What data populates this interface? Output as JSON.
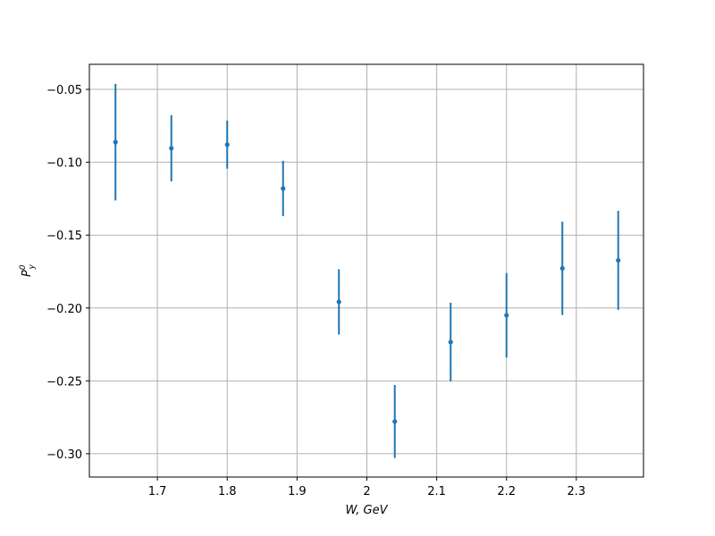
{
  "chart_data": {
    "type": "errorbar",
    "xlabel": "W, GeV",
    "ylabel": "P",
    "ylabel_sub": "y",
    "ylabel_sup": "0",
    "x": [
      1.64,
      1.72,
      1.8,
      1.88,
      1.96,
      2.04,
      2.12,
      2.2,
      2.28,
      2.36
    ],
    "series": [
      {
        "color": "#1f77b4",
        "values": [
          -0.0862,
          -0.0904,
          -0.0879,
          -0.118,
          -0.1958,
          -0.2779,
          -0.2234,
          -0.205,
          -0.1728,
          -0.1673
        ],
        "errors": [
          0.04,
          0.0227,
          0.0165,
          0.019,
          0.0224,
          0.025,
          0.027,
          0.029,
          0.032,
          0.034
        ]
      }
    ],
    "xlim": [
      1.6026,
      2.3962
    ],
    "ylim": [
      -0.316,
      -0.0328
    ],
    "xticks": [
      1.7,
      1.8,
      1.9,
      2.0,
      2.1,
      2.2,
      2.3
    ],
    "yticks": [
      {
        "value": -0.05,
        "label": "−0.05"
      },
      {
        "value": -0.1,
        "label": "−0.10"
      },
      {
        "value": -0.15,
        "label": "−0.15"
      },
      {
        "value": -0.2,
        "label": "−0.20"
      },
      {
        "value": -0.25,
        "label": "−0.25"
      },
      {
        "value": -0.3,
        "label": "−0.30"
      }
    ],
    "grid": true
  }
}
